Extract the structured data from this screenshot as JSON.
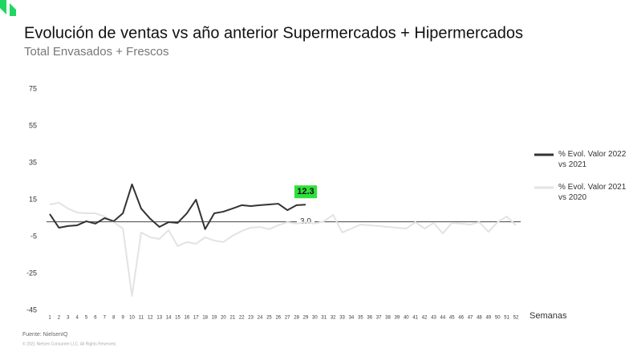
{
  "chart_data": {
    "type": "line",
    "title": "Evolución de ventas vs año anterior Supermercados + Hipermercados",
    "subtitle": "Total Envasados + Frescos",
    "x_label": "Semanas",
    "source": "Fuente: NielsenIQ",
    "copyright": "© 2021 Nielsen Consumer LLC. All Rights Reserved.",
    "x": [
      1,
      2,
      3,
      4,
      5,
      6,
      7,
      8,
      9,
      10,
      11,
      12,
      13,
      14,
      15,
      16,
      17,
      18,
      19,
      20,
      21,
      22,
      23,
      24,
      25,
      26,
      27,
      28,
      29,
      30,
      31,
      32,
      33,
      34,
      35,
      36,
      37,
      38,
      39,
      40,
      41,
      42,
      43,
      44,
      45,
      46,
      47,
      48,
      49,
      50,
      51,
      52
    ],
    "xlim": [
      1,
      52
    ],
    "ylim": [
      -45,
      75
    ],
    "yticks": [
      75,
      55,
      35,
      15,
      -5,
      -25,
      -45
    ],
    "reference_line": {
      "value": 3.0,
      "label": "3.0"
    },
    "series": [
      {
        "name": "% Evol. Valor 2022 vs 2021",
        "color": "#333333",
        "values": [
          7.2,
          -0.2,
          0.7,
          1.1,
          3.3,
          2,
          5,
          3.3,
          7.6,
          23.3,
          10.2,
          4.6,
          0.2,
          2.8,
          2.4,
          7.6,
          15,
          -1,
          7.6,
          8.5,
          10.2,
          12,
          11.5,
          12,
          12.4,
          12.8,
          9.3,
          12,
          12.3,
          null,
          null,
          null,
          null,
          null,
          null,
          null,
          null,
          null,
          null,
          null,
          null,
          null,
          null,
          null,
          null,
          null,
          null,
          null,
          null,
          null,
          null,
          null
        ]
      },
      {
        "name": "% Evol. Valor 2021 vs 2020",
        "color": "#e3e3e3",
        "values": [
          12.4,
          13.3,
          10.2,
          8,
          7.6,
          7.6,
          5.9,
          2.8,
          -0.7,
          -37.2,
          -2.8,
          -5.4,
          -6.3,
          -1.5,
          -10.2,
          -8,
          -8.9,
          -5.4,
          -7.2,
          -8,
          -4.6,
          -2,
          -0.2,
          0.2,
          -1,
          1.1,
          2.8,
          2,
          2.8,
          2,
          3.3,
          6.7,
          -2.8,
          -0.7,
          1.5,
          1.1,
          0.7,
          0.2,
          -0.2,
          -0.7,
          2.8,
          -0.7,
          2.4,
          -3.3,
          2.4,
          2,
          1.5,
          2.8,
          -2.4,
          2.8,
          5.9,
          1.1
        ]
      }
    ]
  }
}
